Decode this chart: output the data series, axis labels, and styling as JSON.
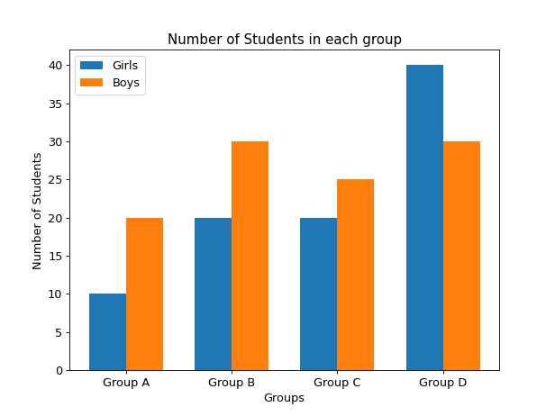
{
  "title": "Number of Students in each group",
  "xlabel": "Groups",
  "ylabel": "Number of Students",
  "categories": [
    "Group A",
    "Group B",
    "Group C",
    "Group D"
  ],
  "girls": [
    10,
    20,
    20,
    40
  ],
  "boys": [
    20,
    30,
    25,
    30
  ],
  "girls_color": "#1f77b4",
  "boys_color": "#ff7f0e",
  "ylim": [
    0,
    42
  ],
  "yticks": [
    0,
    5,
    10,
    15,
    20,
    25,
    30,
    35,
    40
  ],
  "legend_labels": [
    "Girls",
    "Boys"
  ],
  "bar_width": 0.35,
  "title_fontsize": 14,
  "label_fontsize": 12,
  "tick_fontsize": 12,
  "legend_fontsize": 12
}
